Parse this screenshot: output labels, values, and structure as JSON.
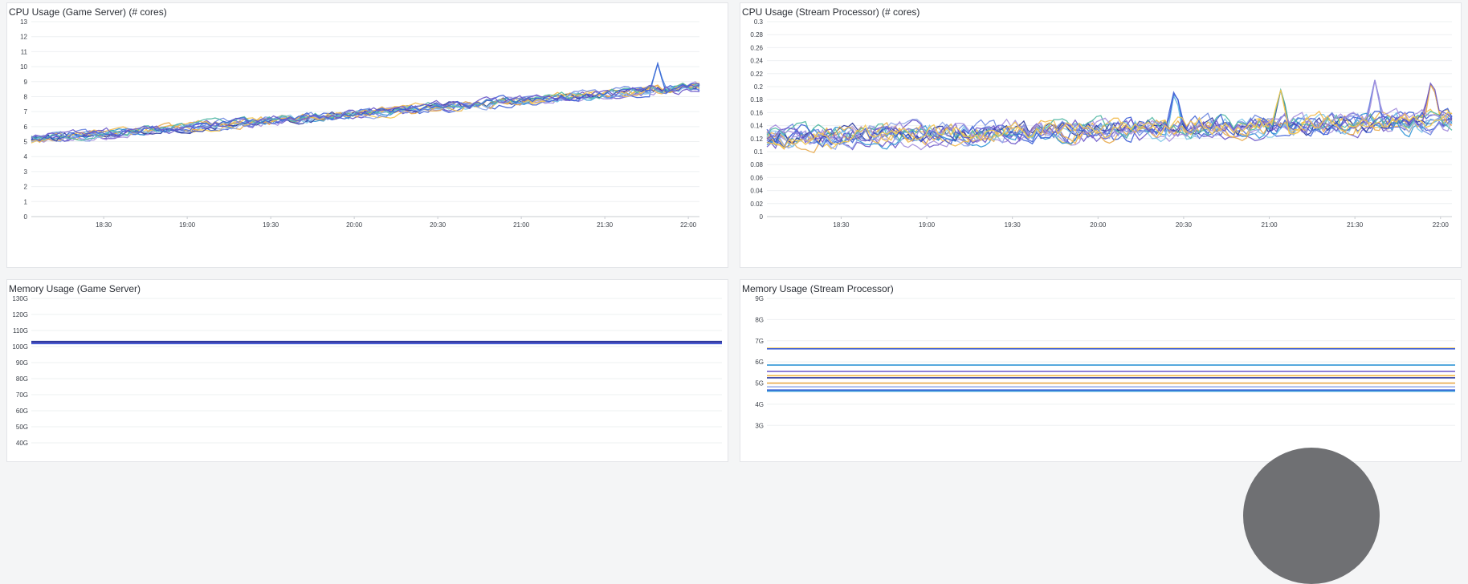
{
  "panels": {
    "cpu_game": {
      "title": "CPU Usage (Game Server) (# cores)"
    },
    "cpu_stream": {
      "title": "CPU Usage (Stream Processor) (# cores)"
    },
    "mem_game": {
      "title": "Memory Usage (Game Server)"
    },
    "mem_stream": {
      "title": "Memory Usage (Stream Processor)"
    }
  },
  "palette": [
    "#3d5fd6",
    "#6a56c9",
    "#a38ddd",
    "#f5c84d",
    "#2f95d6",
    "#e8a94a",
    "#8fa7e8",
    "#2c3a9e",
    "#7dc6e8",
    "#f2b94a",
    "#6c86e0",
    "#4fb7a3"
  ],
  "chart_data": [
    {
      "id": "cpu_game",
      "type": "line",
      "title": "CPU Usage (Game Server) (# cores)",
      "xticks": [
        "18:30",
        "19:00",
        "19:30",
        "20:00",
        "20:30",
        "21:00",
        "21:30",
        "22:00"
      ],
      "x_range": [
        "18:04",
        "22:04"
      ],
      "ylim": [
        0,
        13
      ],
      "yticks": [
        "0",
        "1",
        "2",
        "3",
        "4",
        "5",
        "6",
        "7",
        "8",
        "9",
        "10",
        "11",
        "12",
        "13"
      ],
      "grid": true,
      "series_count": 14,
      "trend": {
        "start": 5.0,
        "end": 8.5
      },
      "noise": 0.35,
      "spikes": [
        {
          "x": "21:49",
          "y": 10.2
        }
      ]
    },
    {
      "id": "cpu_stream",
      "type": "line",
      "title": "CPU Usage (Stream Processor) (# cores)",
      "xticks": [
        "18:30",
        "19:00",
        "19:30",
        "20:00",
        "20:30",
        "21:00",
        "21:30",
        "22:00"
      ],
      "x_range": [
        "18:04",
        "22:04"
      ],
      "ylim": [
        0,
        0.3
      ],
      "yticks": [
        "0",
        "0.02",
        "0.04",
        "0.06",
        "0.08",
        "0.1",
        "0.12",
        "0.14",
        "0.16",
        "0.18",
        "0.2",
        "0.22",
        "0.24",
        "0.26",
        "0.28",
        "0.3"
      ],
      "grid": true,
      "series_count": 16,
      "trend": {
        "start": 0.135,
        "end": 0.16
      },
      "noise": 0.018,
      "spikes": [
        {
          "x": "20:27",
          "y": 0.2
        },
        {
          "x": "21:04",
          "y": 0.195
        },
        {
          "x": "21:37",
          "y": 0.21
        },
        {
          "x": "21:57",
          "y": 0.215
        }
      ]
    },
    {
      "id": "mem_game",
      "type": "line",
      "title": "Memory Usage (Game Server)",
      "ylim_visible": [
        "40G",
        "130G"
      ],
      "yticks": [
        "40G",
        "50G",
        "60G",
        "70G",
        "80G",
        "90G",
        "100G",
        "110G",
        "120G",
        "130G"
      ],
      "yvalues": [
        40,
        50,
        60,
        70,
        80,
        90,
        100,
        110,
        120,
        130
      ],
      "grid": true,
      "lines": [
        {
          "value": 102.0,
          "color": "#3d5fd6"
        },
        {
          "value": 102.6,
          "color": "#6a56c9"
        },
        {
          "value": 103.0,
          "color": "#2c3a9e"
        }
      ]
    },
    {
      "id": "mem_stream",
      "type": "line",
      "title": "Memory Usage (Stream Processor)",
      "ylim_visible": [
        "3G",
        "9G"
      ],
      "yticks": [
        "3G",
        "4G",
        "5G",
        "6G",
        "7G",
        "8G",
        "9G"
      ],
      "yvalues": [
        3,
        4,
        5,
        6,
        7,
        8,
        9
      ],
      "grid": true,
      "lines": [
        {
          "value": 6.65,
          "color": "#f5c84d"
        },
        {
          "value": 6.62,
          "color": "#3d5fd6"
        },
        {
          "value": 5.85,
          "color": "#2f95d6"
        },
        {
          "value": 5.55,
          "color": "#6a56c9"
        },
        {
          "value": 5.35,
          "color": "#f2b94a"
        },
        {
          "value": 5.25,
          "color": "#2c3a9e"
        },
        {
          "value": 5.0,
          "color": "#e8a94a"
        },
        {
          "value": 4.82,
          "color": "#8fa7e8"
        },
        {
          "value": 4.67,
          "color": "#3d5fd6"
        },
        {
          "value": 4.62,
          "color": "#2f95d6"
        }
      ]
    }
  ]
}
